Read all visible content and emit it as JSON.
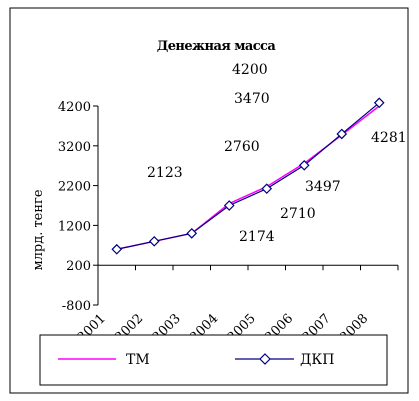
{
  "chart_data": {
    "type": "line",
    "title": "Денежная масса",
    "xlabel": "",
    "ylabel": "млрд. тенге",
    "categories": [
      "2001",
      "2002",
      "2003",
      "2004",
      "2005",
      "2006",
      "2007",
      "2008"
    ],
    "ylim": [
      -800,
      4200
    ],
    "yticks": [
      -800,
      200,
      1200,
      2200,
      3200,
      4200
    ],
    "grid": false,
    "legend_position": "bottom",
    "series": [
      {
        "name": "ТМ",
        "color": "#ff00ff",
        "marker": "none",
        "values": [
          600,
          800,
          1000,
          1750,
          2174,
          2760,
          3470,
          4200
        ]
      },
      {
        "name": "ДКП",
        "color": "#000080",
        "marker": "diamond",
        "values": [
          600,
          800,
          1000,
          1700,
          2123,
          2710,
          3497,
          4281
        ]
      }
    ],
    "annotations": [
      "4200",
      "3470",
      "2760",
      "2123",
      "3497",
      "4281",
      "2710",
      "2174"
    ]
  }
}
